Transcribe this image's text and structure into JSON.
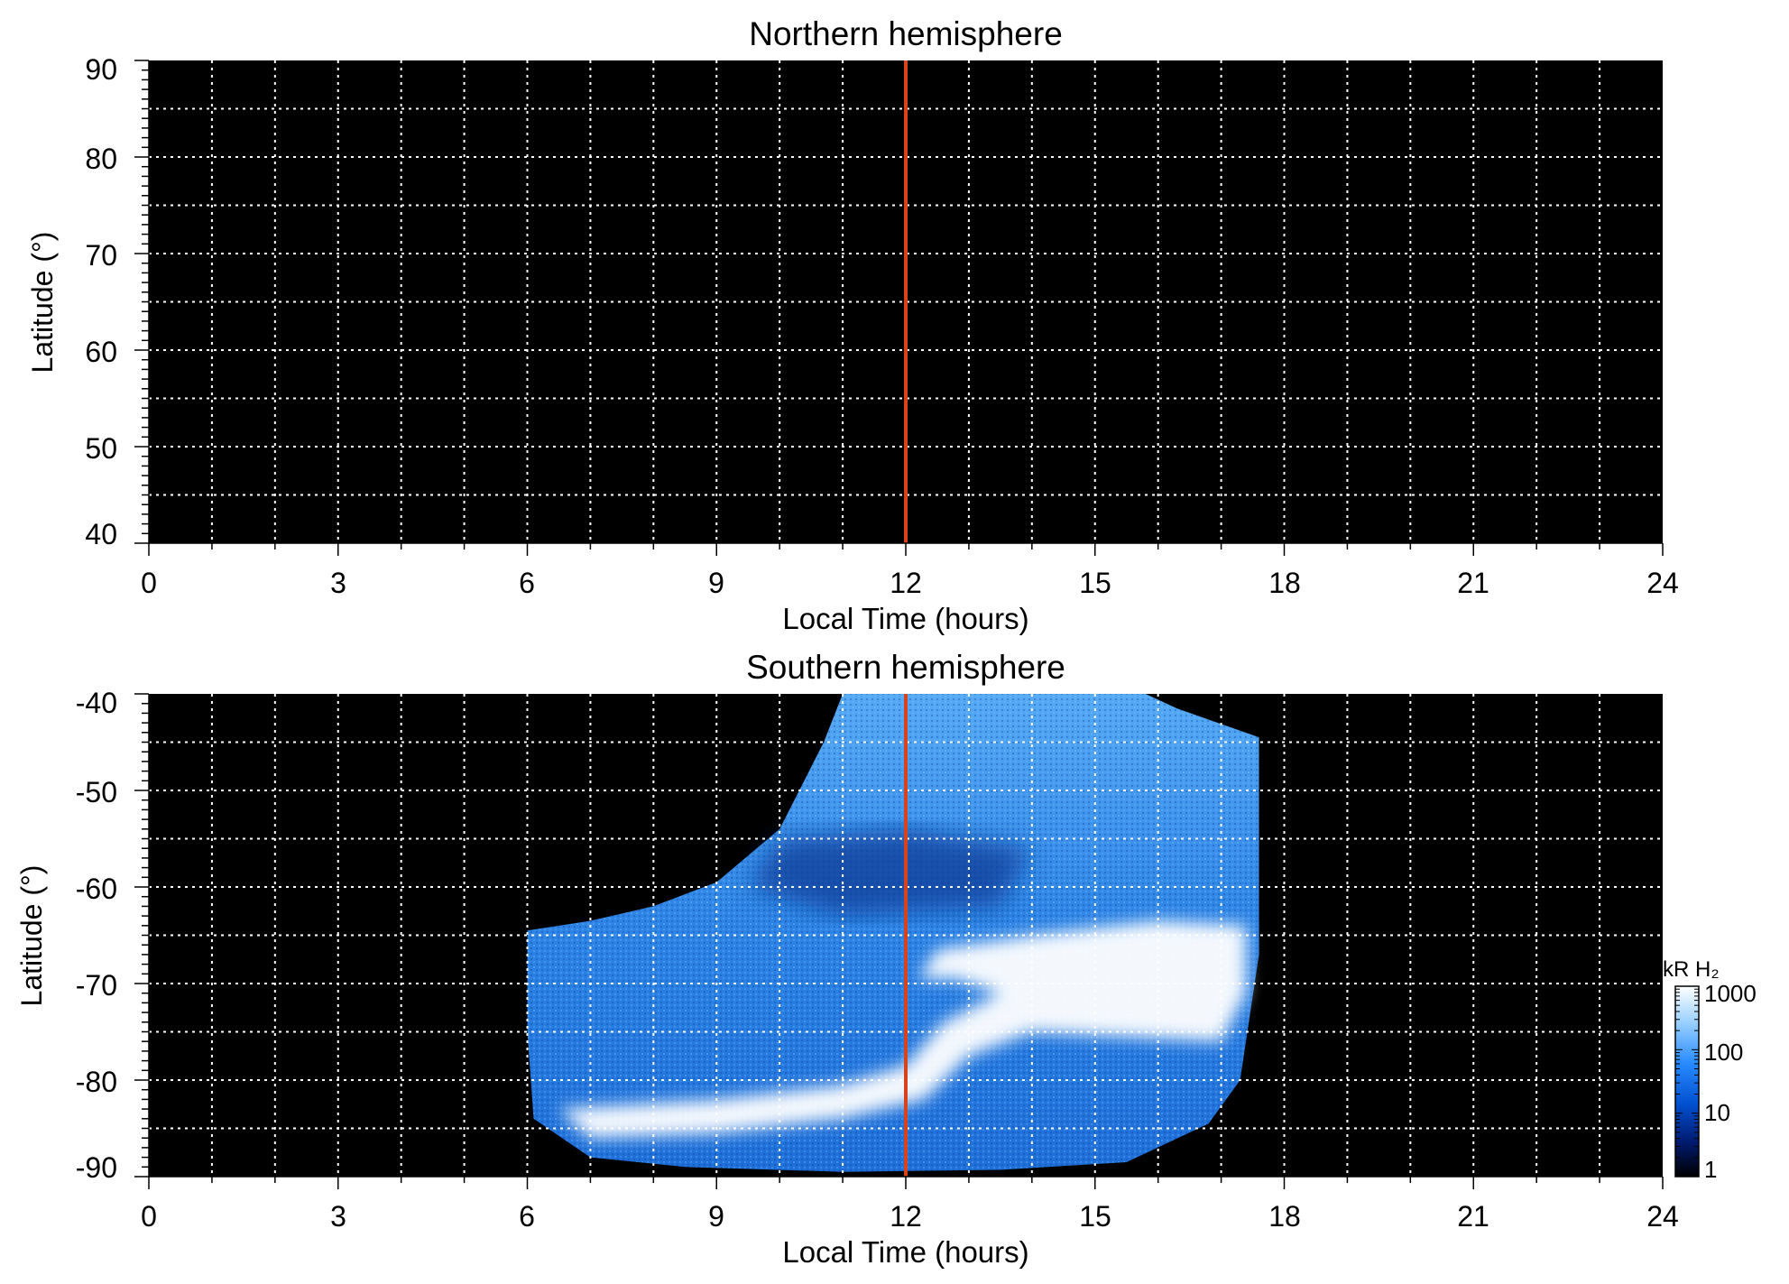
{
  "chart_data": [
    {
      "type": "heatmap",
      "title": "Northern hemisphere",
      "xlabel": "Local Time (hours)",
      "ylabel": "Latitude (°)",
      "xlim": [
        0,
        24
      ],
      "ylim": [
        40,
        90
      ],
      "xticks": [
        "0",
        "3",
        "6",
        "9",
        "12",
        "15",
        "18",
        "21",
        "24"
      ],
      "yticks": [
        "40",
        "50",
        "60",
        "70",
        "80",
        "90"
      ],
      "grid": true,
      "background": "#000000",
      "grid_color": "#ffffff",
      "marker_line": {
        "x": 12,
        "color": "#d8431c"
      },
      "emission": null
    },
    {
      "type": "heatmap",
      "title": "Southern hemisphere",
      "xlabel": "Local Time (hours)",
      "ylabel": "Latitude (°)",
      "xlim": [
        0,
        24
      ],
      "ylim": [
        -90,
        -40
      ],
      "xticks": [
        "0",
        "3",
        "6",
        "9",
        "12",
        "15",
        "18",
        "21",
        "24"
      ],
      "yticks": [
        "-40",
        "-50",
        "-60",
        "-70",
        "-80",
        "-90"
      ],
      "grid": true,
      "background": "#000000",
      "grid_color": "#ffffff",
      "marker_line": {
        "x": 12,
        "color": "#d8431c"
      },
      "emission": {
        "coverage_boundary": [
          [
            6.0,
            -64.5
          ],
          [
            7.0,
            -63.5
          ],
          [
            8.0,
            -62.0
          ],
          [
            9.0,
            -59.5
          ],
          [
            10.0,
            -54.0
          ],
          [
            10.7,
            -45.0
          ],
          [
            11.0,
            -40.0
          ],
          [
            15.8,
            -40.0
          ],
          [
            16.3,
            -41.5
          ],
          [
            17.6,
            -44.5
          ],
          [
            17.6,
            -67.0
          ],
          [
            17.3,
            -80.0
          ],
          [
            16.8,
            -84.5
          ],
          [
            15.5,
            -88.5
          ],
          [
            13.5,
            -89.3
          ],
          [
            11.0,
            -89.5
          ],
          [
            8.5,
            -89.0
          ],
          [
            7.0,
            -88.0
          ],
          [
            6.1,
            -84.0
          ],
          [
            6.0,
            -75.0
          ]
        ],
        "dark_region": [
          [
            10.0,
            -55.0
          ],
          [
            12.0,
            -54.0
          ],
          [
            14.0,
            -56.0
          ],
          [
            13.5,
            -62.0
          ],
          [
            11.0,
            -63.0
          ],
          [
            9.5,
            -60.0
          ]
        ],
        "bright_oval": [
          [
            12.2,
            -69.5
          ],
          [
            12.5,
            -66.5
          ],
          [
            14.0,
            -65.0
          ],
          [
            16.0,
            -63.5
          ],
          [
            17.4,
            -64.0
          ],
          [
            17.4,
            -71.0
          ],
          [
            17.0,
            -76.0
          ],
          [
            15.5,
            -75.5
          ],
          [
            14.0,
            -75.0
          ],
          [
            13.0,
            -77.5
          ],
          [
            12.3,
            -82.0
          ],
          [
            11.0,
            -84.0
          ],
          [
            9.0,
            -85.5
          ],
          [
            7.0,
            -86.0
          ],
          [
            6.5,
            -83.0
          ],
          [
            9.0,
            -82.0
          ],
          [
            11.0,
            -80.5
          ],
          [
            12.0,
            -78.5
          ],
          [
            12.6,
            -74.0
          ],
          [
            13.5,
            -71.0
          ],
          [
            12.8,
            -69.5
          ]
        ]
      }
    }
  ],
  "colorbar": {
    "label": "kR H₂",
    "ticks": [
      "1000",
      "100",
      "10",
      "1"
    ],
    "colors": [
      "#ffffff",
      "#9fd3ff",
      "#2a8cff",
      "#0050d0",
      "#001a6e",
      "#000000"
    ]
  }
}
